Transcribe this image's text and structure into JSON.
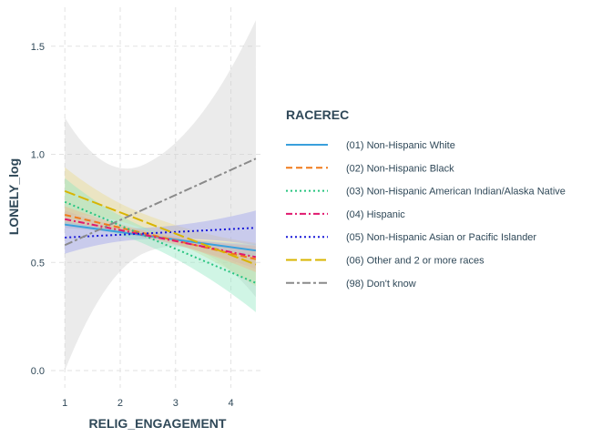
{
  "chart_data": {
    "type": "line",
    "title": "",
    "xlabel": "RELIG_ENGAGEMENT",
    "ylabel": "LONELY_log",
    "xlim": [
      0.75,
      4.55
    ],
    "ylim": [
      -0.08,
      1.68
    ],
    "x_ticks": [
      1,
      2,
      3,
      4
    ],
    "y_ticks": [
      0.0,
      0.5,
      1.0,
      1.5
    ],
    "y_tick_labels": [
      "0.0",
      "0.5",
      "1.0",
      "1.5"
    ],
    "grid": true,
    "legend_title": "RACEREC",
    "legend_position": "right",
    "series": [
      {
        "name": "(01) Non-Hispanic White",
        "color": "#3aa0dc",
        "dash": "solid",
        "x": [
          1,
          4.45
        ],
        "y": [
          0.675,
          0.555
        ],
        "ci_lower": [
          0.66,
          0.525
        ],
        "ci_upper": [
          0.69,
          0.585
        ],
        "ci_color": "#9ec9e8"
      },
      {
        "name": "(02) Non-Hispanic Black",
        "color": "#f07a1a",
        "dash": "dashed",
        "x": [
          1,
          4.45
        ],
        "y": [
          0.72,
          0.515
        ],
        "ci_lower": [
          0.68,
          0.455
        ],
        "ci_upper": [
          0.76,
          0.575
        ],
        "ci_color": "#f2b28a"
      },
      {
        "name": "(03) Non-Hispanic American Indian/Alaska Native",
        "color": "#27c47f",
        "dash": "dotted",
        "x": [
          1,
          4.45
        ],
        "y": [
          0.78,
          0.405
        ],
        "ci_lower": [
          0.67,
          0.27
        ],
        "ci_upper": [
          0.89,
          0.54
        ],
        "ci_color": "#8fe8c2"
      },
      {
        "name": "(04) Hispanic",
        "color": "#e0186e",
        "dash": "dashdot",
        "x": [
          1,
          4.45
        ],
        "y": [
          0.7,
          0.525
        ],
        "ci_lower": [
          0.66,
          0.47
        ],
        "ci_upper": [
          0.74,
          0.58
        ],
        "ci_color": "#e8a0b8"
      },
      {
        "name": "(05) Non-Hispanic Asian or Pacific Islander",
        "color": "#1a1ad8",
        "dash": "dotted",
        "x": [
          1,
          4.45
        ],
        "y": [
          0.615,
          0.66
        ],
        "ci_lower": [
          0.54,
          0.58
        ],
        "ci_upper": [
          0.69,
          0.74
        ],
        "ci_color": "#9aa0ee"
      },
      {
        "name": "(06) Other and 2 or more races",
        "color": "#d8b400",
        "dash": "longdash",
        "x": [
          1,
          4.45
        ],
        "y": [
          0.83,
          0.49
        ],
        "ci_lower": [
          0.72,
          0.39
        ],
        "ci_upper": [
          0.94,
          0.59
        ],
        "ci_color": "#ecdc8a"
      },
      {
        "name": "(98) Don't know",
        "color": "#8a8a8a",
        "dash": "twodash",
        "x": [
          1,
          4.45
        ],
        "y": [
          0.58,
          0.98
        ],
        "ci_lower": [
          0.0,
          0.34
        ],
        "ci_upper": [
          1.17,
          1.62
        ],
        "ci_color": "#cfcfcf"
      }
    ]
  }
}
